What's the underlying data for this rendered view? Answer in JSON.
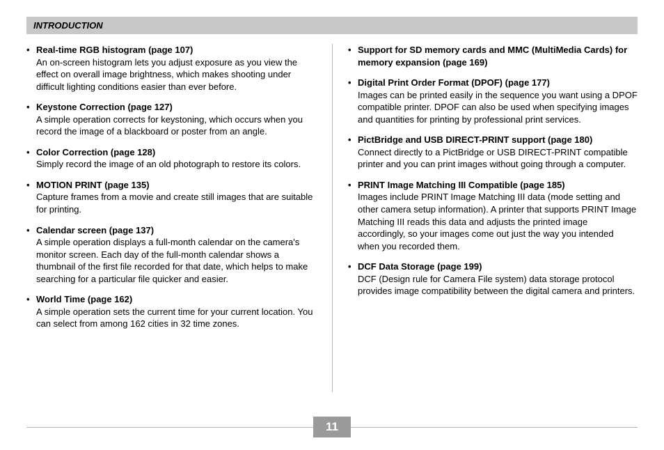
{
  "header": {
    "title": "INTRODUCTION"
  },
  "footer": {
    "page_number": "11"
  },
  "colors": {
    "header_bg": "#c8c8c8",
    "divider": "#b5b5b5",
    "footer_bg": "#9a9a9a",
    "text": "#000000",
    "page_bg": "#ffffff"
  },
  "typography": {
    "body_fontsize_pt": 10,
    "header_fontsize_pt": 10,
    "page_num_fontsize_pt": 13
  },
  "left_items": [
    {
      "title": "Real-time RGB histogram (page 107)",
      "desc": "An on-screen histogram lets you adjust exposure as you view the effect on overall image brightness, which makes shooting under difficult lighting conditions easier than ever before."
    },
    {
      "title": "Keystone Correction (page 127)",
      "desc": "A simple operation corrects for keystoning, which occurs when you record the image of a blackboard or poster from an angle."
    },
    {
      "title": "Color Correction (page 128)",
      "desc": "Simply record the image of an old photograph to restore its colors."
    },
    {
      "title": "MOTION PRINT (page 135)",
      "desc": "Capture frames from a movie and create still images that are suitable for printing."
    },
    {
      "title": "Calendar screen (page 137)",
      "desc": "A simple operation displays a full-month calendar on the camera's monitor screen. Each day of the full-month calendar shows a thumbnail of the first file recorded for that date, which helps to make searching for a particular file quicker and easier."
    },
    {
      "title": "World Time (page 162)",
      "desc": "A simple operation sets the current time for your current location. You can select from among 162 cities in 32 time zones."
    }
  ],
  "right_items": [
    {
      "title": "Support for SD memory cards and MMC (MultiMedia Cards) for memory expansion (page 169)",
      "desc": ""
    },
    {
      "title": "Digital Print Order Format (DPOF) (page 177)",
      "desc": "Images can be printed easily in the sequence you want using a DPOF compatible printer. DPOF can also be used when specifying images and quantities for printing by professional print services."
    },
    {
      "title": "PictBridge and USB DIRECT-PRINT support (page 180)",
      "desc": "Connect directly to a PictBridge or USB DIRECT-PRINT compatible printer and you can print images without going through a computer."
    },
    {
      "title": "PRINT Image Matching III Compatible (page 185)",
      "desc": "Images include PRINT Image Matching III data (mode setting and other camera setup information). A printer that supports PRINT Image Matching III reads this data and adjusts the printed image accordingly, so your images come out just the way you intended when you recorded them."
    },
    {
      "title": "DCF Data Storage (page 199)",
      "desc": "DCF (Design rule for Camera File system) data storage protocol provides image compatibility between the digital camera and printers."
    }
  ]
}
